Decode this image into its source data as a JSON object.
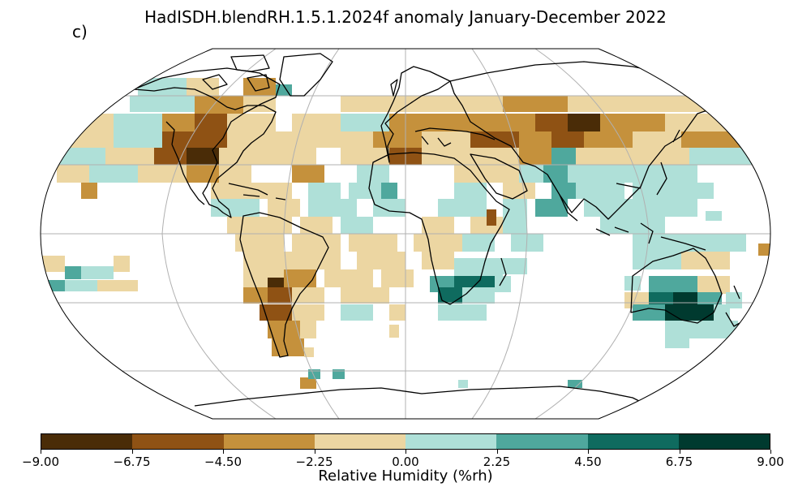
{
  "title": "HadISDH.blendRH.1.5.1.2024f anomaly January-December 2022",
  "panel_label": "c)",
  "colorbar": {
    "label": "Relative Humidity (%rh)",
    "ticks": [
      "−9.00",
      "−6.75",
      "−4.50",
      "−2.25",
      "0.00",
      "2.25",
      "4.50",
      "6.75",
      "9.00"
    ],
    "colors": [
      "#4a2c07",
      "#8f5214",
      "#c5913c",
      "#ecd6a2",
      "#afe0d8",
      "#4fa89d",
      "#0f6b5f",
      "#003a2f"
    ]
  },
  "map": {
    "projection": "Robinson",
    "grid_lines": true,
    "missing_data_color": "#ffffff"
  }
}
